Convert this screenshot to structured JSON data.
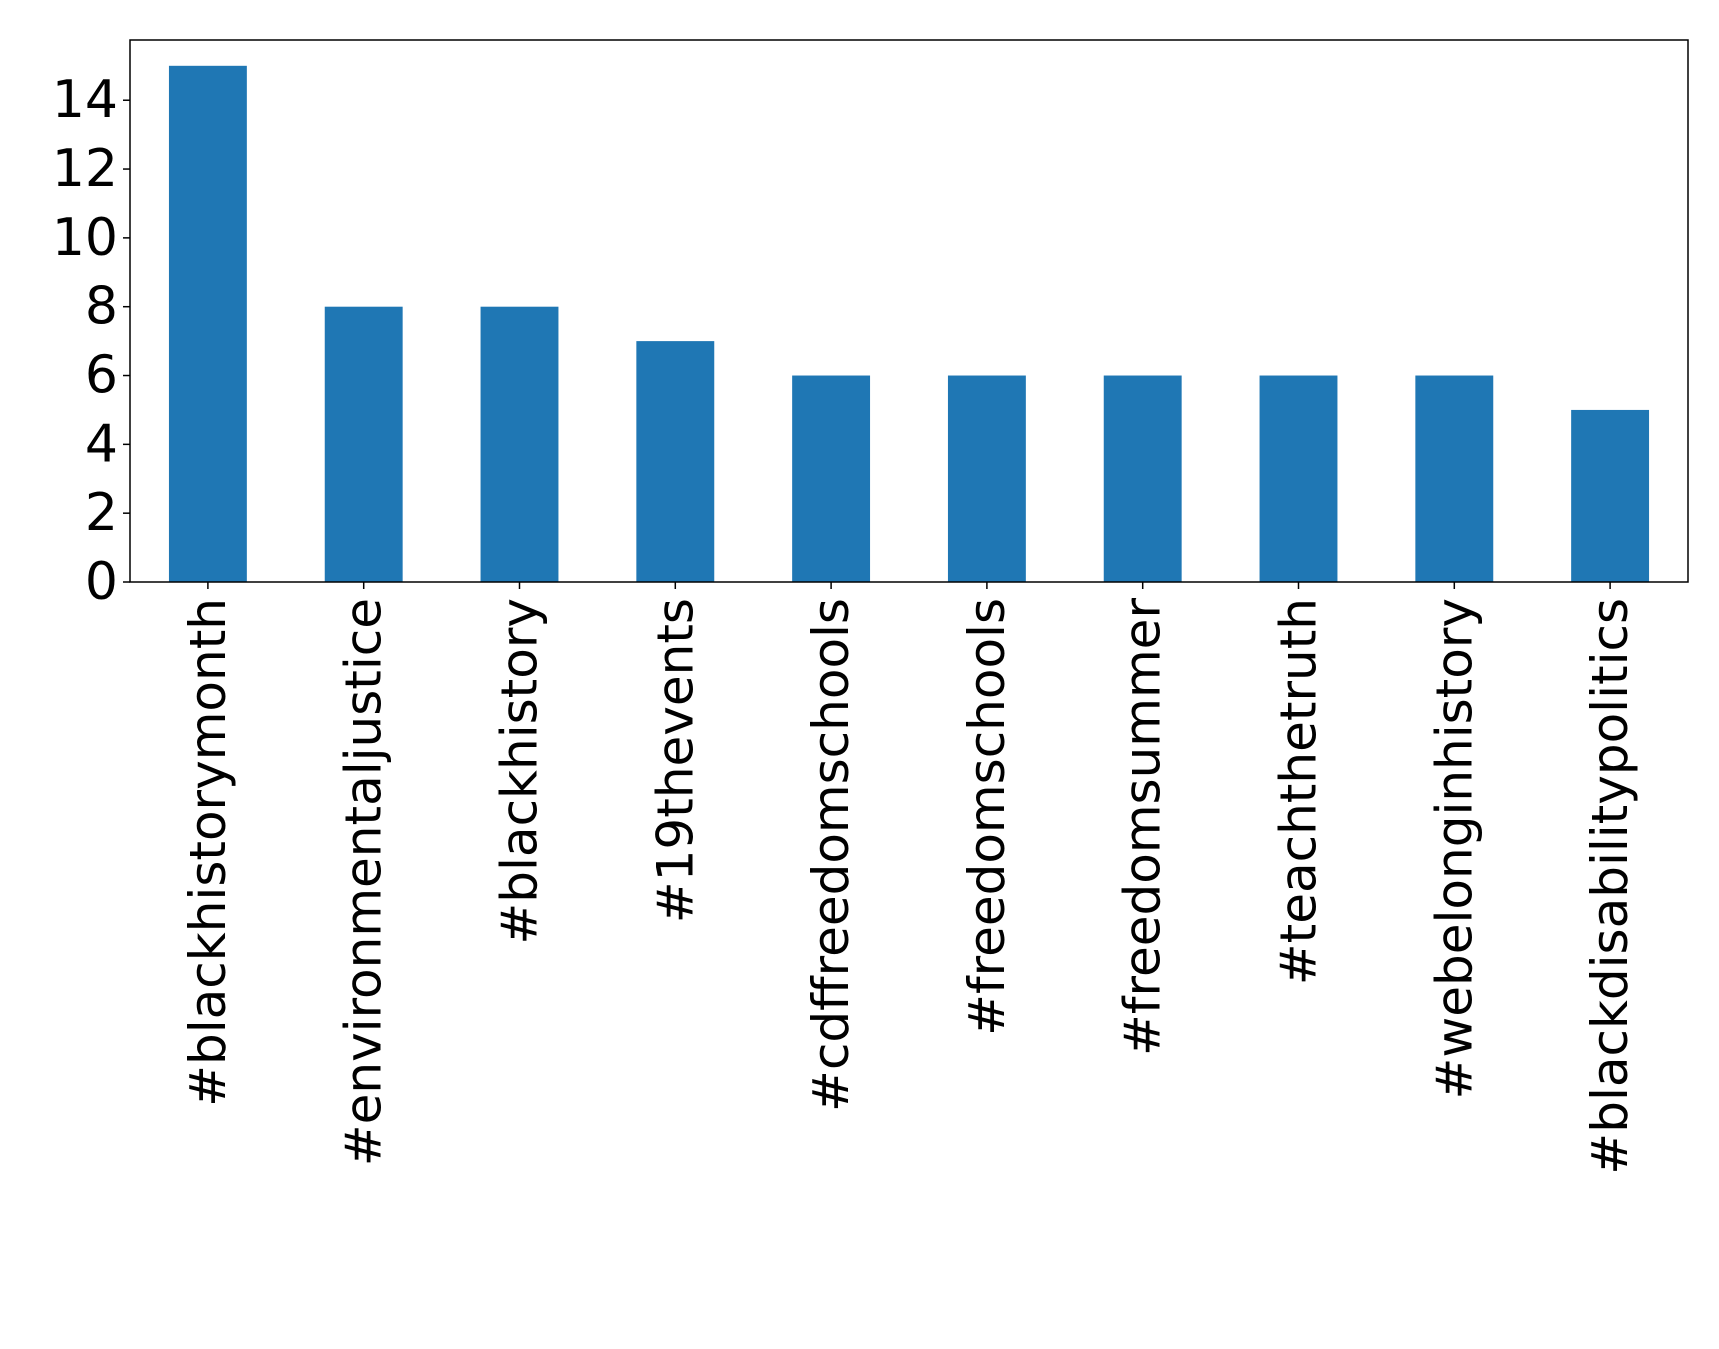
{
  "chart_data": {
    "type": "bar",
    "title": "",
    "xlabel": "",
    "ylabel": "",
    "categories": [
      "#blackhistorymonth",
      "#environmentaljustice",
      "#blackhistory",
      "#19thevents",
      "#cdffreedomschools",
      "#freedomschools",
      "#freedomsummer",
      "#teachthetruth",
      "#webelonginhistory",
      "#blackdisabilitypolitics"
    ],
    "values": [
      15,
      8,
      8,
      7,
      6,
      6,
      6,
      6,
      6,
      5
    ],
    "ylim": [
      0,
      15.75
    ],
    "yticks": [
      0,
      2,
      4,
      6,
      8,
      10,
      12,
      14
    ],
    "ytick_labels": [
      "0",
      "2",
      "4",
      "6",
      "8",
      "10",
      "12",
      "14"
    ],
    "bar_color": "#1f77b4",
    "grid": false,
    "legend": "none"
  }
}
